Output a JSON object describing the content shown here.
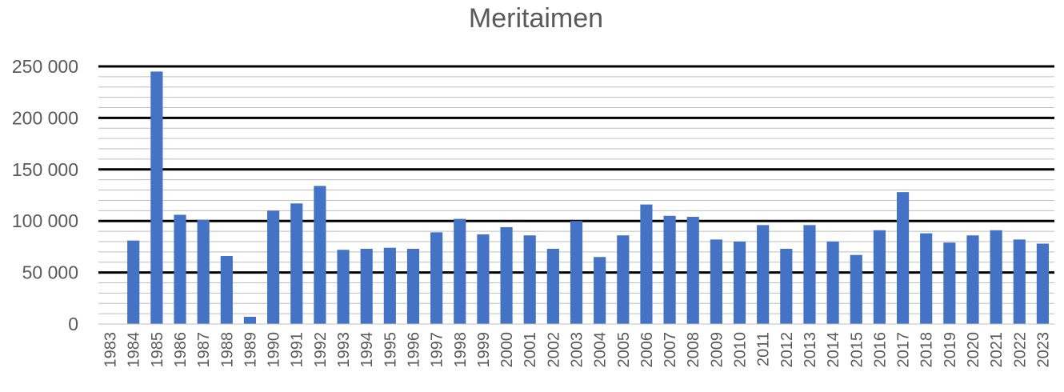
{
  "chart_data": {
    "type": "bar",
    "title": "Meritaimen",
    "xlabel": "",
    "ylabel": "",
    "ylim": [
      0,
      250000
    ],
    "major_grid_step": 50000,
    "minor_grid_step": 10000,
    "grid": true,
    "legend": "none",
    "y_tick_labels": [
      "0",
      "50 000",
      "100 000",
      "150 000",
      "200 000",
      "250 000"
    ],
    "bar_color": "#4472C4",
    "major_grid_color": "#000000",
    "minor_grid_color": "#BFBFBF",
    "text_color": "#595959",
    "categories": [
      "1983",
      "1984",
      "1985",
      "1986",
      "1987",
      "1988",
      "1989",
      "1990",
      "1991",
      "1992",
      "1993",
      "1994",
      "1995",
      "1996",
      "1997",
      "1998",
      "1999",
      "2000",
      "2001",
      "2002",
      "2003",
      "2004",
      "2005",
      "2006",
      "2007",
      "2008",
      "2009",
      "2010",
      "2011",
      "2012",
      "2013",
      "2014",
      "2015",
      "2016",
      "2017",
      "2018",
      "2019",
      "2020",
      "2021",
      "2022",
      "2023"
    ],
    "values": [
      0,
      81000,
      245000,
      106000,
      101000,
      66000,
      7000,
      110000,
      117000,
      134000,
      72000,
      73000,
      74000,
      73000,
      89000,
      102000,
      87000,
      94000,
      86000,
      73000,
      100000,
      65000,
      86000,
      116000,
      105000,
      104000,
      82000,
      80000,
      96000,
      73000,
      96000,
      80000,
      67000,
      91000,
      128000,
      88000,
      79000,
      86000,
      91000,
      82000,
      78000
    ]
  }
}
